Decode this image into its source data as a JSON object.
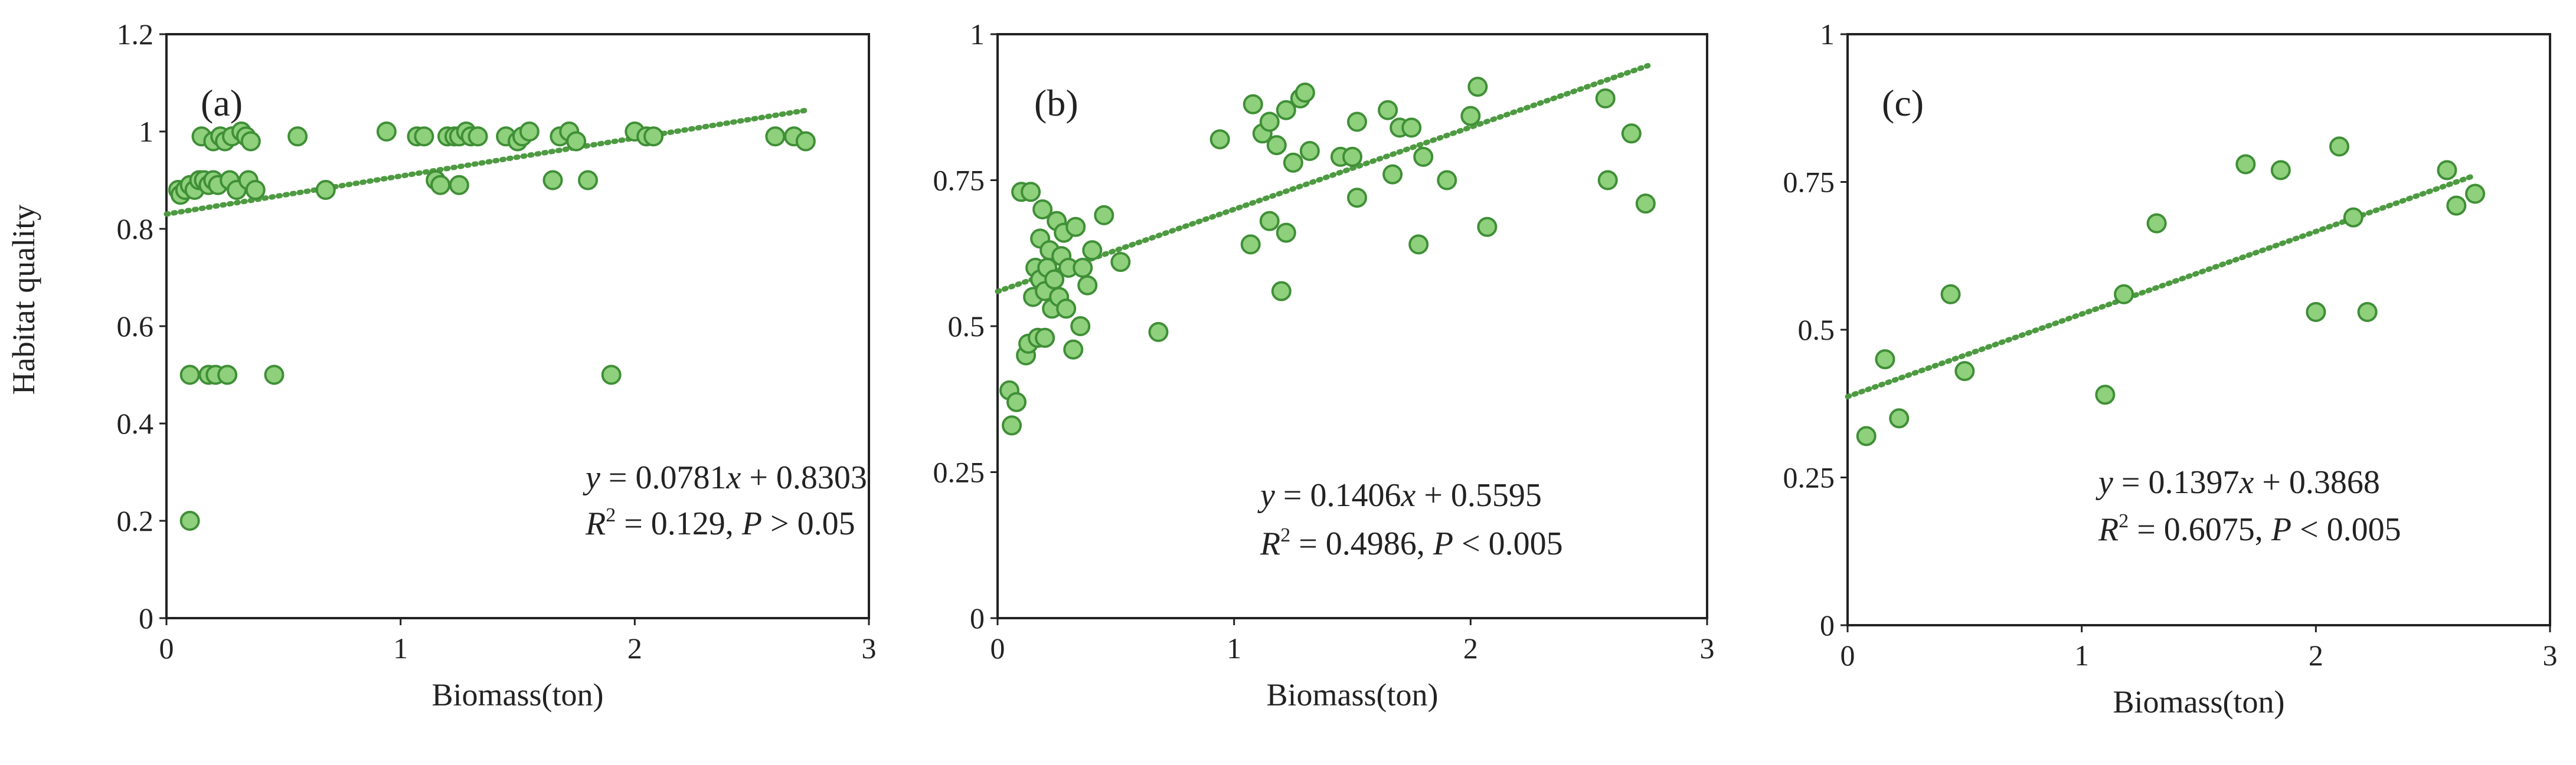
{
  "colors": {
    "point_fill": "#8fd07c",
    "point_edge": "#3f8f36",
    "trend": "#4d9a41",
    "frame": "#222222"
  },
  "y_axis_title": "Habitat quality",
  "chart_data": [
    {
      "id": "a",
      "type": "scatter",
      "panel_label": "(a)",
      "xlabel": "Biomass(ton)",
      "ylabel": "Habitat quality",
      "xlim": [
        0,
        3
      ],
      "ylim": [
        0,
        1.2
      ],
      "xticks": [
        0,
        1,
        2,
        3
      ],
      "xtick_labels": [
        "0",
        "1",
        "2",
        "3"
      ],
      "yticks": [
        0,
        0.2,
        0.4,
        0.6,
        0.8,
        1.0,
        1.2
      ],
      "ytick_labels": [
        "0",
        "0.2",
        "0.4",
        "0.6",
        "0.8",
        "1",
        "1.2"
      ],
      "trendline": {
        "slope": 0.0781,
        "intercept": 0.8303,
        "x_range": [
          0,
          2.73
        ]
      },
      "equation": {
        "y_label": "y",
        "lhs": " = 0.0781",
        "x_label": "x",
        "rhs": " + 0.8303"
      },
      "stats": {
        "r_label": "R",
        "r_sup": "2",
        "r_value": " = 0.129, ",
        "p_label": "P",
        "p_value": " > 0.05"
      },
      "legend_position": "bottom-right",
      "points": [
        [
          0.05,
          0.88
        ],
        [
          0.06,
          0.87
        ],
        [
          0.08,
          0.88
        ],
        [
          0.1,
          0.89
        ],
        [
          0.12,
          0.88
        ],
        [
          0.14,
          0.9
        ],
        [
          0.15,
          0.99
        ],
        [
          0.16,
          0.9
        ],
        [
          0.18,
          0.89
        ],
        [
          0.2,
          0.98
        ],
        [
          0.2,
          0.9
        ],
        [
          0.22,
          0.89
        ],
        [
          0.23,
          0.99
        ],
        [
          0.25,
          0.98
        ],
        [
          0.27,
          0.9
        ],
        [
          0.28,
          0.99
        ],
        [
          0.3,
          0.88
        ],
        [
          0.32,
          1.0
        ],
        [
          0.34,
          0.99
        ],
        [
          0.35,
          0.9
        ],
        [
          0.36,
          0.98
        ],
        [
          0.38,
          0.88
        ],
        [
          0.56,
          0.99
        ],
        [
          0.68,
          0.88
        ],
        [
          0.94,
          1.0
        ],
        [
          1.07,
          0.99
        ],
        [
          1.1,
          0.99
        ],
        [
          1.15,
          0.9
        ],
        [
          1.17,
          0.89
        ],
        [
          1.2,
          0.99
        ],
        [
          1.23,
          0.99
        ],
        [
          1.25,
          0.99
        ],
        [
          1.25,
          0.89
        ],
        [
          1.28,
          1.0
        ],
        [
          1.3,
          0.99
        ],
        [
          1.33,
          0.99
        ],
        [
          1.45,
          0.99
        ],
        [
          1.5,
          0.98
        ],
        [
          1.52,
          0.99
        ],
        [
          1.55,
          1.0
        ],
        [
          1.65,
          0.9
        ],
        [
          1.68,
          0.99
        ],
        [
          1.72,
          1.0
        ],
        [
          1.75,
          0.98
        ],
        [
          1.8,
          0.9
        ],
        [
          2.0,
          1.0
        ],
        [
          2.05,
          0.99
        ],
        [
          2.08,
          0.99
        ],
        [
          2.6,
          0.99
        ],
        [
          2.68,
          0.99
        ],
        [
          2.73,
          0.98
        ],
        [
          0.1,
          0.5
        ],
        [
          0.18,
          0.5
        ],
        [
          0.21,
          0.5
        ],
        [
          0.26,
          0.5
        ],
        [
          0.46,
          0.5
        ],
        [
          1.9,
          0.5
        ],
        [
          0.1,
          0.2
        ]
      ]
    },
    {
      "id": "b",
      "type": "scatter",
      "panel_label": "(b)",
      "xlabel": "Biomass(ton)",
      "ylabel": "",
      "xlim": [
        0,
        3
      ],
      "ylim": [
        0,
        1
      ],
      "xticks": [
        0,
        1,
        2,
        3
      ],
      "xtick_labels": [
        "0",
        "1",
        "2",
        "3"
      ],
      "yticks": [
        0,
        0.25,
        0.5,
        0.75,
        1.0
      ],
      "ytick_labels": [
        "0",
        "0.25",
        "0.5",
        "0.75",
        "1"
      ],
      "trendline": {
        "slope": 0.1406,
        "intercept": 0.5595,
        "x_range": [
          0,
          2.75
        ]
      },
      "equation": {
        "y_label": "y",
        "lhs": " = 0.1406",
        "x_label": "x",
        "rhs": " + 0.5595"
      },
      "stats": {
        "r_label": "R",
        "r_sup": "2",
        "r_value": " = 0.4986, ",
        "p_label": "P",
        "p_value": " < 0.005"
      },
      "legend_position": "bottom-right",
      "points": [
        [
          0.05,
          0.39
        ],
        [
          0.06,
          0.33
        ],
        [
          0.08,
          0.37
        ],
        [
          0.1,
          0.73
        ],
        [
          0.12,
          0.45
        ],
        [
          0.13,
          0.47
        ],
        [
          0.14,
          0.73
        ],
        [
          0.15,
          0.55
        ],
        [
          0.16,
          0.6
        ],
        [
          0.17,
          0.48
        ],
        [
          0.18,
          0.58
        ],
        [
          0.18,
          0.65
        ],
        [
          0.19,
          0.7
        ],
        [
          0.2,
          0.48
        ],
        [
          0.2,
          0.56
        ],
        [
          0.21,
          0.6
        ],
        [
          0.22,
          0.63
        ],
        [
          0.23,
          0.53
        ],
        [
          0.24,
          0.58
        ],
        [
          0.25,
          0.68
        ],
        [
          0.26,
          0.55
        ],
        [
          0.27,
          0.62
        ],
        [
          0.28,
          0.66
        ],
        [
          0.29,
          0.53
        ],
        [
          0.3,
          0.6
        ],
        [
          0.32,
          0.46
        ],
        [
          0.33,
          0.67
        ],
        [
          0.35,
          0.5
        ],
        [
          0.36,
          0.6
        ],
        [
          0.38,
          0.57
        ],
        [
          0.4,
          0.63
        ],
        [
          0.45,
          0.69
        ],
        [
          0.52,
          0.61
        ],
        [
          0.68,
          0.49
        ],
        [
          0.94,
          0.82
        ],
        [
          1.07,
          0.64
        ],
        [
          1.08,
          0.88
        ],
        [
          1.12,
          0.83
        ],
        [
          1.15,
          0.68
        ],
        [
          1.15,
          0.85
        ],
        [
          1.18,
          0.81
        ],
        [
          1.2,
          0.56
        ],
        [
          1.22,
          0.87
        ],
        [
          1.22,
          0.66
        ],
        [
          1.25,
          0.78
        ],
        [
          1.28,
          0.89
        ],
        [
          1.3,
          0.9
        ],
        [
          1.32,
          0.8
        ],
        [
          1.45,
          0.79
        ],
        [
          1.5,
          0.79
        ],
        [
          1.52,
          0.85
        ],
        [
          1.52,
          0.72
        ],
        [
          1.65,
          0.87
        ],
        [
          1.67,
          0.76
        ],
        [
          1.7,
          0.84
        ],
        [
          1.75,
          0.84
        ],
        [
          1.78,
          0.64
        ],
        [
          1.8,
          0.79
        ],
        [
          1.9,
          0.75
        ],
        [
          2.0,
          0.86
        ],
        [
          2.03,
          0.91
        ],
        [
          2.07,
          0.67
        ],
        [
          2.57,
          0.89
        ],
        [
          2.58,
          0.75
        ],
        [
          2.68,
          0.83
        ],
        [
          2.74,
          0.71
        ]
      ]
    },
    {
      "id": "c",
      "type": "scatter",
      "panel_label": "(c)",
      "xlabel": "Biomass(ton)",
      "ylabel": "",
      "xlim": [
        0,
        3
      ],
      "ylim": [
        0,
        1
      ],
      "xticks": [
        0,
        1,
        2,
        3
      ],
      "xtick_labels": [
        "0",
        "1",
        "2",
        "3"
      ],
      "yticks": [
        0,
        0.25,
        0.5,
        0.75,
        1.0
      ],
      "ytick_labels": [
        "0",
        "0.25",
        "0.5",
        "0.75",
        "1"
      ],
      "trendline": {
        "slope": 0.1397,
        "intercept": 0.3868,
        "x_range": [
          0,
          2.68
        ]
      },
      "equation": {
        "y_label": "y",
        "lhs": " = 0.1397",
        "x_label": "x",
        "rhs": " + 0.3868"
      },
      "stats": {
        "r_label": "R",
        "r_sup": "2",
        "r_value": " = 0.6075, ",
        "p_label": "P",
        "p_value": " < 0.005"
      },
      "legend_position": "bottom-right",
      "points": [
        [
          0.08,
          0.32
        ],
        [
          0.16,
          0.45
        ],
        [
          0.22,
          0.35
        ],
        [
          0.44,
          0.56
        ],
        [
          0.5,
          0.43
        ],
        [
          1.1,
          0.39
        ],
        [
          1.18,
          0.56
        ],
        [
          1.32,
          0.68
        ],
        [
          1.7,
          0.78
        ],
        [
          1.85,
          0.77
        ],
        [
          2.0,
          0.53
        ],
        [
          2.1,
          0.81
        ],
        [
          2.16,
          0.69
        ],
        [
          2.22,
          0.53
        ],
        [
          2.56,
          0.77
        ],
        [
          2.6,
          0.71
        ],
        [
          2.68,
          0.73
        ]
      ]
    }
  ]
}
